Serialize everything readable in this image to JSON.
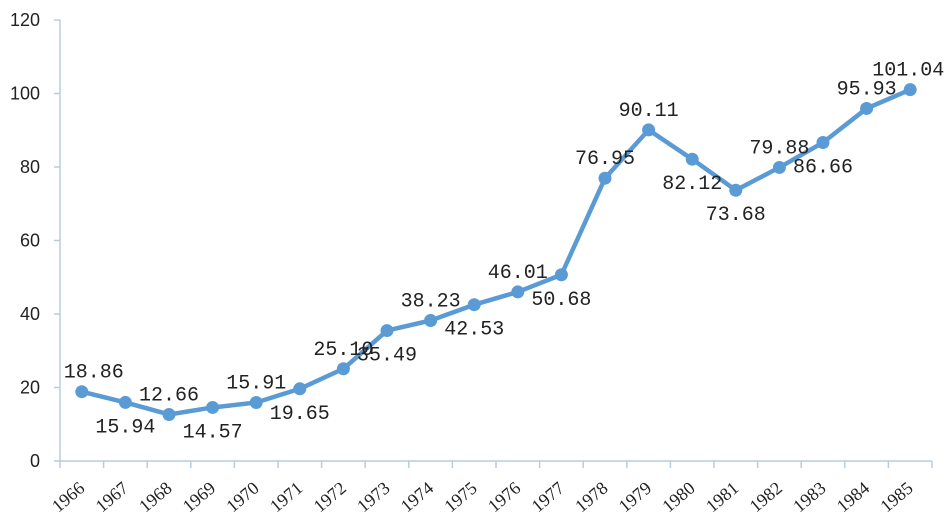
{
  "chart_data": {
    "type": "line",
    "title": "",
    "xlabel": "",
    "ylabel": "",
    "ylim": [
      0,
      120
    ],
    "yticks": [
      "0",
      "20",
      "40",
      "60",
      "80",
      "100",
      "120"
    ],
    "grid": false,
    "legend": "none",
    "categories": [
      "1966",
      "1967",
      "1968",
      "1969",
      "1970",
      "1971",
      "1972",
      "1973",
      "1974",
      "1975",
      "1976",
      "1977",
      "1978",
      "1979",
      "1980",
      "1981",
      "1982",
      "1983",
      "1984",
      "1985"
    ],
    "series": [
      {
        "color": "#5b9bd5",
        "values": [
          18.86,
          15.94,
          12.66,
          14.57,
          15.91,
          19.65,
          25.1,
          35.49,
          38.23,
          42.53,
          46.01,
          50.68,
          76.95,
          90.11,
          82.12,
          73.68,
          79.88,
          86.66,
          95.93,
          101.04
        ],
        "labels": [
          "18.86",
          "15.94",
          "12.66",
          "14.57",
          "15.91",
          "19.65",
          "25.10",
          "35.49",
          "38.23",
          "42.53",
          "46.01",
          "50.68",
          "76.95",
          "90.11",
          "82.12",
          "73.68",
          "79.88",
          "86.66",
          "95.93",
          "101.04"
        ]
      }
    ]
  }
}
